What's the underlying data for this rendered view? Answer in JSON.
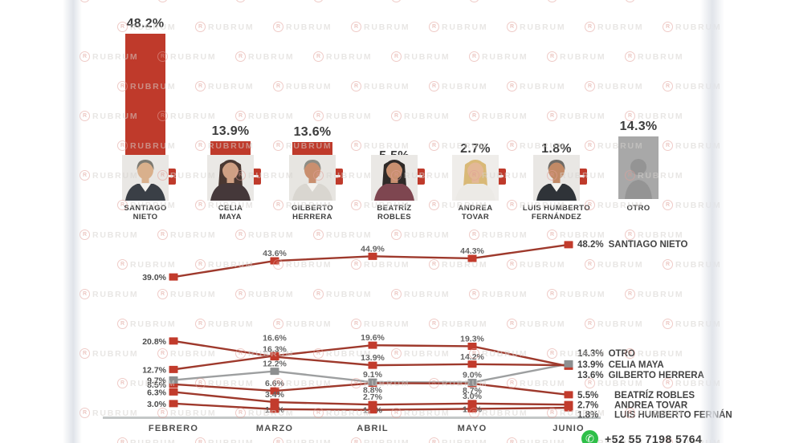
{
  "watermark": {
    "text": "RUBRUM",
    "logo_letter": "R"
  },
  "contact": {
    "phone": "+52 55 7198 5764",
    "icon": "whatsapp"
  },
  "colors": {
    "bar_red": "#bf3a2b",
    "line_red": "#9e392c",
    "marker_red": "#c23b2c",
    "gray_block": "#a8a8a8",
    "line_gray": "#9d9fa0",
    "marker_gray": "#8d8f90",
    "axis_gray": "#c3c7c7",
    "whatsapp_green": "#2ebf48"
  },
  "chart_data": [
    {
      "type": "bar",
      "title": "",
      "unit": "%",
      "categories": [
        "SANTIAGO NIETO",
        "CELIA MAYA",
        "GILBERTO HERRERA",
        "BEATRÍZ ROBLES",
        "ANDREA TOVAR",
        "LUIS HUMBERTO FERNÁNDEZ",
        "OTRO"
      ],
      "values": [
        48.2,
        13.9,
        13.6,
        5.5,
        2.7,
        1.8,
        14.3
      ],
      "value_labels": [
        "48.2%",
        "13.9%",
        "13.6%",
        "5.5%",
        "2.7%",
        "1.8%",
        "14.3%"
      ],
      "ylim": [
        0,
        50
      ],
      "candidates": [
        {
          "name_lines": [
            "SANTIAGO",
            "NIETO"
          ],
          "photo": {
            "style": "short",
            "bg": "#e9e7e4",
            "hair": "#7c7a72",
            "skin": "#d9b08c",
            "suit": "#3a3f46",
            "shirt": "#f4f2ee"
          }
        },
        {
          "name_lines": [
            "CELIA",
            "MAYA"
          ],
          "photo": {
            "style": "long",
            "bg": "#eae8e5",
            "hair": "#4a3832",
            "skin": "#cfa084",
            "suit": "#45383a",
            "shirt": ""
          }
        },
        {
          "name_lines": [
            "GILBERTO",
            "HERRERA"
          ],
          "photo": {
            "style": "short",
            "bg": "#e7e5e1",
            "hair": "#8d8d85",
            "skin": "#c98f6f",
            "suit": "#d9d6d0",
            "shirt": "#f4f2ee"
          }
        },
        {
          "name_lines": [
            "BEATRÍZ",
            "ROBLES"
          ],
          "photo": {
            "style": "long",
            "bg": "#eae8e5",
            "hair": "#2f2a28",
            "skin": "#c99070",
            "suit": "#7e4650",
            "shirt": ""
          }
        },
        {
          "name_lines": [
            "ANDREA",
            "TOVAR"
          ],
          "photo": {
            "style": "long",
            "bg": "#efedea",
            "hair": "#d9b977",
            "skin": "#e3b896",
            "suit": "#eceae6",
            "shirt": ""
          }
        },
        {
          "name_lines": [
            "LUIS HUMBERTO",
            "FERNÁNDEZ"
          ],
          "photo": {
            "style": "short",
            "bg": "#e9e7e4",
            "hair": "#6f6b66",
            "skin": "#c28a66",
            "suit": "#2f3338",
            "shirt": "#f4f2ee"
          }
        },
        {
          "name_lines": [
            "OTRO"
          ],
          "photo": {
            "style": "placeholder",
            "bg": "#a8a8a8",
            "hair": "#949494",
            "skin": "#949494",
            "suit": "#949494",
            "shirt": ""
          }
        }
      ]
    },
    {
      "type": "line",
      "categories": [
        "FEBRERO",
        "MARZO",
        "ABRIL",
        "MAYO",
        "JUNIO"
      ],
      "ylim": [
        0,
        52
      ],
      "grid": false,
      "legend_position": "right",
      "series": [
        {
          "id": "santiago-nieto",
          "color": "red",
          "values": [
            39.0,
            43.6,
            44.9,
            44.3,
            48.2
          ],
          "point_labels": [
            "39.0%",
            "43.6%",
            "44.9%",
            "44.3%",
            ""
          ],
          "label_pos": [
            "left",
            "above",
            "above",
            "above",
            "none"
          ],
          "legend_value": "48.2%",
          "legend_name": "SANTIAGO NIETO"
        },
        {
          "id": "otro",
          "color": "gray",
          "values": [
            9.7,
            12.2,
            9.1,
            9.0,
            14.3
          ],
          "point_labels": [
            "9.7%",
            "12.2%",
            "9.1%",
            "9.0%",
            ""
          ],
          "label_pos": [
            "left",
            "above",
            "above",
            "above",
            "none"
          ],
          "legend_value": "14.3%",
          "legend_name": "OTRO"
        },
        {
          "id": "celia-maya",
          "color": "red",
          "values": [
            20.8,
            16.3,
            13.9,
            14.2,
            13.9
          ],
          "point_labels": [
            "20.8%",
            "16.3%",
            "13.9%",
            "14.2%",
            ""
          ],
          "label_pos": [
            "left",
            "above",
            "above",
            "above",
            "none"
          ],
          "legend_value": "13.9%",
          "legend_name": "CELIA MAYA"
        },
        {
          "id": "gilberto-herrera",
          "color": "red",
          "values": [
            12.7,
            16.6,
            19.6,
            19.3,
            13.6
          ],
          "point_labels": [
            "12.7%",
            "16.6%",
            "19.6%",
            "19.3%",
            ""
          ],
          "label_pos": [
            "left",
            "above2",
            "above",
            "above",
            "none"
          ],
          "legend_value": "13.6%",
          "legend_name": "GILBERTO HERRERA"
        },
        {
          "id": "beatriz-robles",
          "color": "red",
          "values": [
            8.5,
            6.6,
            8.8,
            8.7,
            5.5
          ],
          "point_labels": [
            "8.5%",
            "6.6%",
            "8.8%",
            "8.7%",
            ""
          ],
          "label_pos": [
            "left",
            "above",
            "below",
            "below",
            "none"
          ],
          "legend_value": "5.5%",
          "legend_name": "BEATRÍZ ROBLES"
        },
        {
          "id": "andrea-tovar",
          "color": "red",
          "values": [
            6.3,
            3.4,
            2.7,
            3.0,
            2.7
          ],
          "point_labels": [
            "6.3%",
            "3.4%",
            "2.7%",
            "3.0%",
            ""
          ],
          "label_pos": [
            "left",
            "above",
            "above",
            "above",
            "none"
          ],
          "legend_value": "2.7%",
          "legend_name": "ANDREA TOVAR"
        },
        {
          "id": "luis-humberto-fernandez",
          "color": "red",
          "values": [
            3.0,
            1.4,
            1.2,
            1.5,
            1.8
          ],
          "point_labels": [
            "3.0%",
            "1.4%",
            "1.2%",
            "1.5%",
            ""
          ],
          "label_pos": [
            "left",
            "behind",
            "behind",
            "behind",
            "none"
          ],
          "legend_value": "1.8%",
          "legend_name": "LUIS HUMBERTO FERNÁN"
        }
      ]
    }
  ]
}
